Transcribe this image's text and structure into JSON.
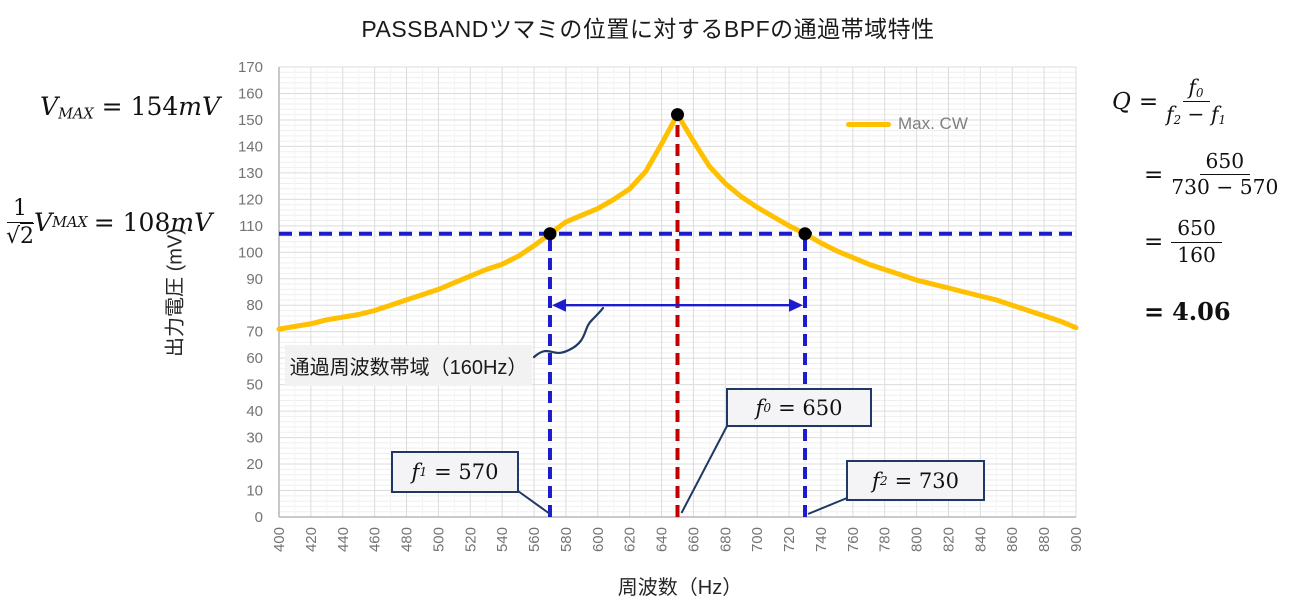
{
  "chart_data": {
    "type": "line",
    "title": "PASSBANDツマミの位置に対するBPFの通過帯域特性",
    "xlabel": "周波数（Hz）",
    "ylabel": "出力電圧 (mV)",
    "xlim": [
      400,
      900
    ],
    "ylim": [
      0,
      170
    ],
    "x_tick_step": 20,
    "y_tick_step": 10,
    "grid": {
      "x_major": 20,
      "x_minor": 10,
      "y_major": 10,
      "y_minor": 2
    },
    "legend_position": "top-right-inside",
    "series": [
      {
        "name": "Max. CW",
        "color": "#FFC000",
        "x": [
          400,
          410,
          420,
          430,
          440,
          450,
          460,
          470,
          480,
          490,
          500,
          510,
          520,
          530,
          540,
          550,
          560,
          570,
          580,
          590,
          600,
          610,
          620,
          630,
          640,
          650,
          660,
          670,
          680,
          690,
          700,
          710,
          720,
          730,
          740,
          750,
          760,
          770,
          780,
          790,
          800,
          810,
          820,
          830,
          840,
          850,
          860,
          870,
          880,
          890,
          900
        ],
        "values": [
          71,
          72,
          73,
          74.5,
          75.5,
          76.5,
          78,
          80,
          82,
          84,
          86,
          88.5,
          91,
          93.5,
          95.5,
          98.5,
          102.5,
          107,
          111.5,
          114,
          116.5,
          120,
          124,
          130.5,
          141,
          152,
          142,
          132.5,
          126,
          121,
          117,
          113.5,
          110,
          107,
          103.5,
          100.5,
          98,
          95.5,
          93.5,
          91.5,
          89.5,
          88,
          86.5,
          85,
          83.5,
          82,
          80,
          78,
          76,
          74,
          71.5
        ]
      }
    ],
    "markers": [
      {
        "x": 570,
        "y": 107
      },
      {
        "x": 650,
        "y": 152
      },
      {
        "x": 730,
        "y": 107
      }
    ],
    "reference_lines": [
      {
        "name": "half-power-level",
        "orientation": "horizontal",
        "value": 107,
        "color": "#1C1CCE"
      },
      {
        "name": "f1-line",
        "orientation": "vertical",
        "value": 570,
        "to": 107,
        "color": "#1C1CCE"
      },
      {
        "name": "f0-line",
        "orientation": "vertical",
        "value": 650,
        "to": 152,
        "color": "#C00000"
      },
      {
        "name": "f2-line",
        "orientation": "vertical",
        "value": 730,
        "to": 107,
        "color": "#1C1CCE"
      }
    ],
    "band_arrow": {
      "x1": 570,
      "x2": 730,
      "y": 80,
      "color": "#1C1CCE"
    },
    "colors": {
      "series": "#FFC000",
      "dashed_blue": "#1C1CCE",
      "dashed_red": "#C00000",
      "callout_navy": "#1F3864",
      "grid_major": "#DCDCDC",
      "grid_minor": "#EFEFEF",
      "axis_line": "#ABABAB",
      "tick_label": "#737373",
      "marker": "#000000"
    }
  },
  "formulas": {
    "vmax": {
      "variable": "V",
      "subscript": "MAX",
      "equals_value": "= 154",
      "unit": "mV"
    },
    "half_power": {
      "numerator": "1",
      "radical_sign": "√",
      "radicand": "2",
      "variable": "V",
      "subscript": "MAX",
      "equals_value": "= 108",
      "unit": "mV"
    },
    "q": {
      "lhs": "Q",
      "eq1": "=",
      "num1_var": "f",
      "num1_sub": "0",
      "den1_var_a": "f",
      "den1_sub_a": "2",
      "den1_op": "−",
      "den1_var_b": "f",
      "den1_sub_b": "1",
      "eq2": "=",
      "num2": "650",
      "den2": "730 − 570",
      "eq3": "=",
      "num3": "650",
      "den3": "160",
      "eq4": "=",
      "result": "4.06"
    }
  },
  "callouts": {
    "f1": {
      "var": "f",
      "sub": "1",
      "value": "= 570"
    },
    "f0": {
      "var": "f",
      "sub": "0",
      "value": "= 650"
    },
    "f2": {
      "var": "f",
      "sub": "2",
      "value": "= 730"
    },
    "bandwidth_label": "通過周波数帯域（160Hz）"
  }
}
